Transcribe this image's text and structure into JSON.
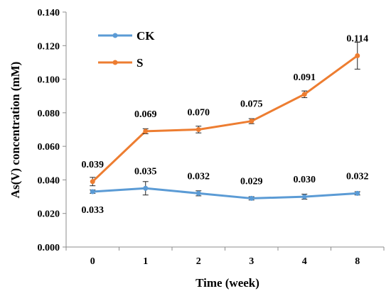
{
  "chart_data": {
    "type": "line",
    "xlabel": "Time (week)",
    "ylabel": "As(V) concentration (mM)",
    "ylim": [
      0,
      0.14
    ],
    "yticks": [
      "0.000",
      "0.020",
      "0.040",
      "0.060",
      "0.080",
      "0.100",
      "0.120",
      "0.140"
    ],
    "categories": [
      "0",
      "1",
      "2",
      "3",
      "4",
      "8"
    ],
    "legend_position": "top-left",
    "grid": false,
    "series": [
      {
        "name": "CK",
        "color": "#5B9BD5",
        "values": [
          0.033,
          0.035,
          0.032,
          0.029,
          0.03,
          0.032
        ],
        "errors": [
          0.001,
          0.004,
          0.0015,
          0.001,
          0.0015,
          0.001
        ],
        "labels": [
          "0.033",
          "0.035",
          "0.032",
          "0.029",
          "0.030",
          "0.032"
        ],
        "label_positions": [
          "below",
          "above",
          "above",
          "above",
          "above",
          "above"
        ]
      },
      {
        "name": "S",
        "color": "#ED7D31",
        "values": [
          0.039,
          0.069,
          0.07,
          0.075,
          0.091,
          0.114
        ],
        "errors": [
          0.0025,
          0.0015,
          0.002,
          0.0015,
          0.002,
          0.008
        ],
        "labels": [
          "0.039",
          "0.069",
          "0.070",
          "0.075",
          "0.091",
          "0.114"
        ],
        "label_positions": [
          "above",
          "above",
          "above",
          "above",
          "above",
          "above"
        ]
      }
    ]
  }
}
